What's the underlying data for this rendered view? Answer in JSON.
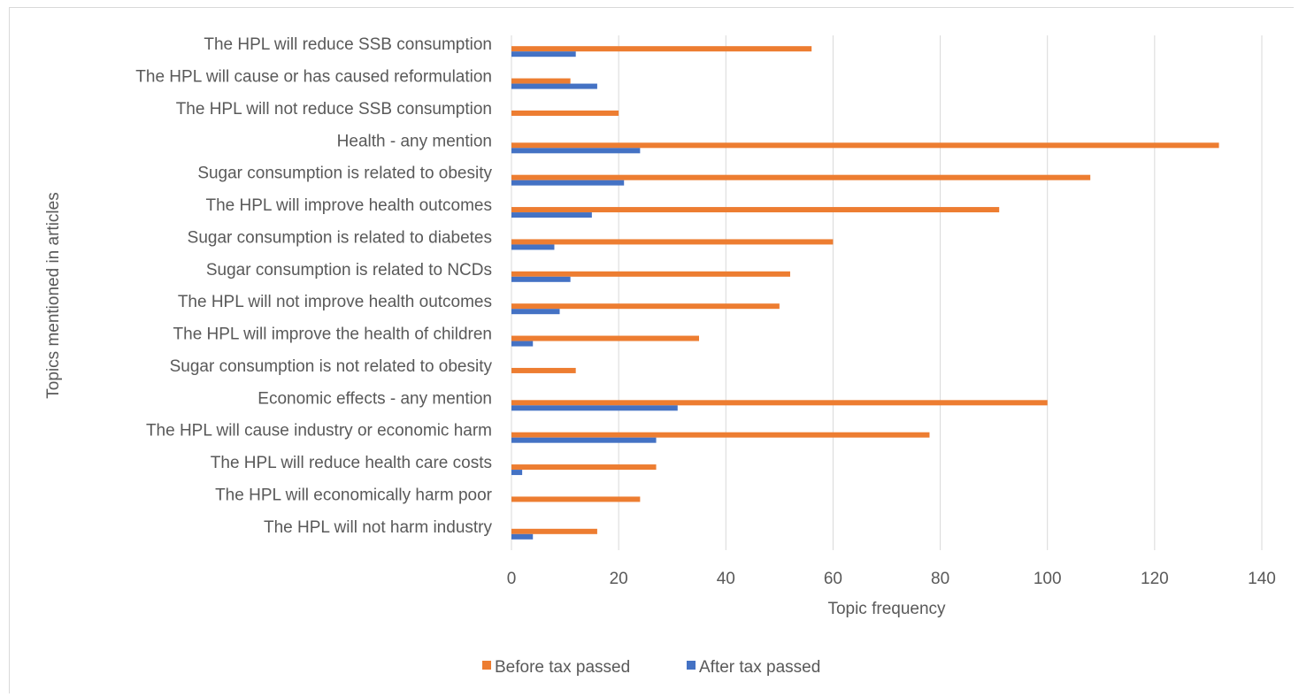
{
  "chart_data": {
    "type": "bar",
    "orientation": "horizontal",
    "title": "",
    "xlabel": "Topic frequency",
    "ylabel": "Topics mentioned in articles",
    "xlim": [
      0,
      140
    ],
    "xticks": [
      0,
      20,
      40,
      60,
      80,
      100,
      120,
      140
    ],
    "grid": "vertical",
    "legend_position": "bottom",
    "categories": [
      "The HPL will reduce SSB consumption",
      "The HPL will cause or has caused reformulation",
      "The HPL will not reduce SSB consumption",
      "Health - any mention",
      "Sugar consumption is related to obesity",
      "The HPL will improve health outcomes",
      "Sugar consumption is related to diabetes",
      "Sugar consumption is related to NCDs",
      "The HPL will not improve health outcomes",
      "The HPL will improve the health of children",
      "Sugar consumption is not related to obesity",
      "Economic effects - any mention",
      "The HPL will cause industry or economic harm ",
      "The HPL will reduce health care costs",
      "The HPL will economically harm poor",
      "The HPL will not harm industry"
    ],
    "series": [
      {
        "name": "Before tax passed",
        "color": "#ed7d31",
        "values": [
          56,
          11,
          20,
          132,
          108,
          91,
          60,
          52,
          50,
          35,
          12,
          100,
          78,
          27,
          24,
          16
        ]
      },
      {
        "name": "After tax passed",
        "color": "#4472c4",
        "values": [
          12,
          16,
          0,
          24,
          21,
          15,
          8,
          11,
          9,
          4,
          0,
          31,
          27,
          2,
          0,
          4
        ]
      }
    ]
  }
}
